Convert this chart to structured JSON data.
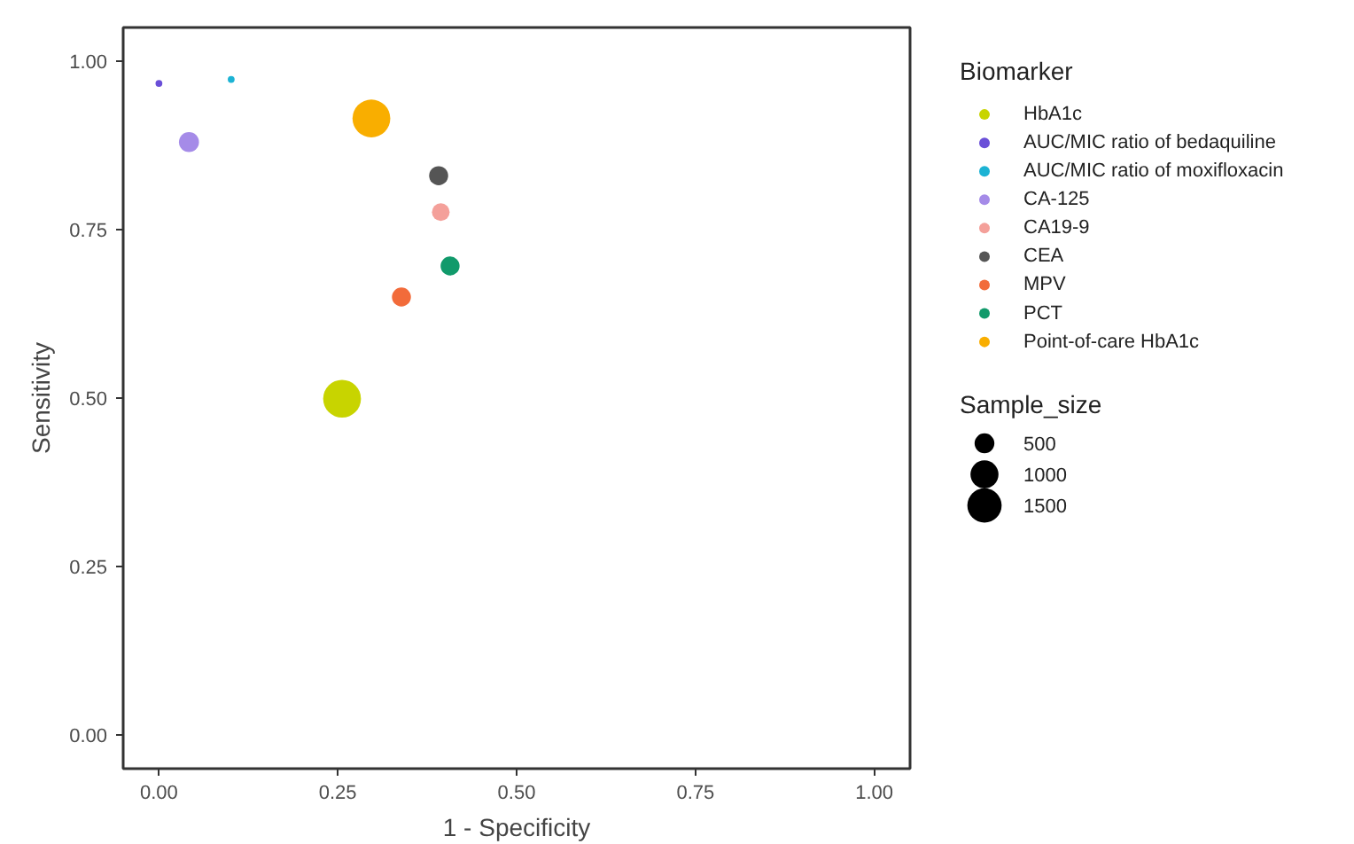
{
  "chart_data": {
    "type": "bubble",
    "xlabel": "1 - Specificity",
    "ylabel": "Sensitivity",
    "legend_title": "Biomarker",
    "legend": "right",
    "grid": false,
    "xlim": [
      -0.05,
      1.05
    ],
    "ylim": [
      -0.05,
      1.05
    ],
    "xticks": [
      {
        "value": 0,
        "label": "0.00"
      },
      {
        "value": 0.25,
        "label": "0.25"
      },
      {
        "value": 0.5,
        "label": "0.50"
      },
      {
        "value": 0.75,
        "label": "0.75"
      },
      {
        "value": 1,
        "label": "1.00"
      }
    ],
    "yticks": [
      {
        "value": 0,
        "label": "0.00"
      },
      {
        "value": 0.25,
        "label": "0.25"
      },
      {
        "value": 0.5,
        "label": "0.50"
      },
      {
        "value": 0.75,
        "label": "0.75"
      },
      {
        "value": 1,
        "label": "1.00"
      }
    ],
    "size_legend": [
      500,
      1000,
      1500
    ],
    "annotations": [
      "Sample_size"
    ],
    "series": [
      {
        "name": "HbA1c",
        "color": "#c8d400",
        "x": [
          0.256
        ],
        "values": [
          0.499
        ],
        "sizes": [
          1820
        ]
      },
      {
        "name": "AUC/MIC ratio of bedaquiline",
        "color": "#6a4fd8",
        "x": [
          0.0
        ],
        "values": [
          0.967
        ],
        "sizes": [
          60
        ]
      },
      {
        "name": "AUC/MIC ratio of moxifloxacin",
        "color": "#1cb3d4",
        "x": [
          0.101
        ],
        "values": [
          0.973
        ],
        "sizes": [
          60
        ]
      },
      {
        "name": "CA-125",
        "color": "#a58be8",
        "x": [
          0.042
        ],
        "values": [
          0.88
        ],
        "sizes": [
          510
        ]
      },
      {
        "name": "CA19-9",
        "color": "#f4a09a",
        "x": [
          0.394
        ],
        "values": [
          0.776
        ],
        "sizes": [
          400
        ]
      },
      {
        "name": "CEA",
        "color": "#555555",
        "x": [
          0.391
        ],
        "values": [
          0.83
        ],
        "sizes": [
          460
        ]
      },
      {
        "name": "MPV",
        "color": "#f26b3a",
        "x": [
          0.339
        ],
        "values": [
          0.65
        ],
        "sizes": [
          460
        ]
      },
      {
        "name": "PCT",
        "color": "#119a6b",
        "x": [
          0.407
        ],
        "values": [
          0.696
        ],
        "sizes": [
          460
        ]
      },
      {
        "name": "Point-of-care HbA1c",
        "color": "#f9ae00",
        "x": [
          0.297
        ],
        "values": [
          0.915
        ],
        "sizes": [
          1820
        ]
      }
    ]
  }
}
